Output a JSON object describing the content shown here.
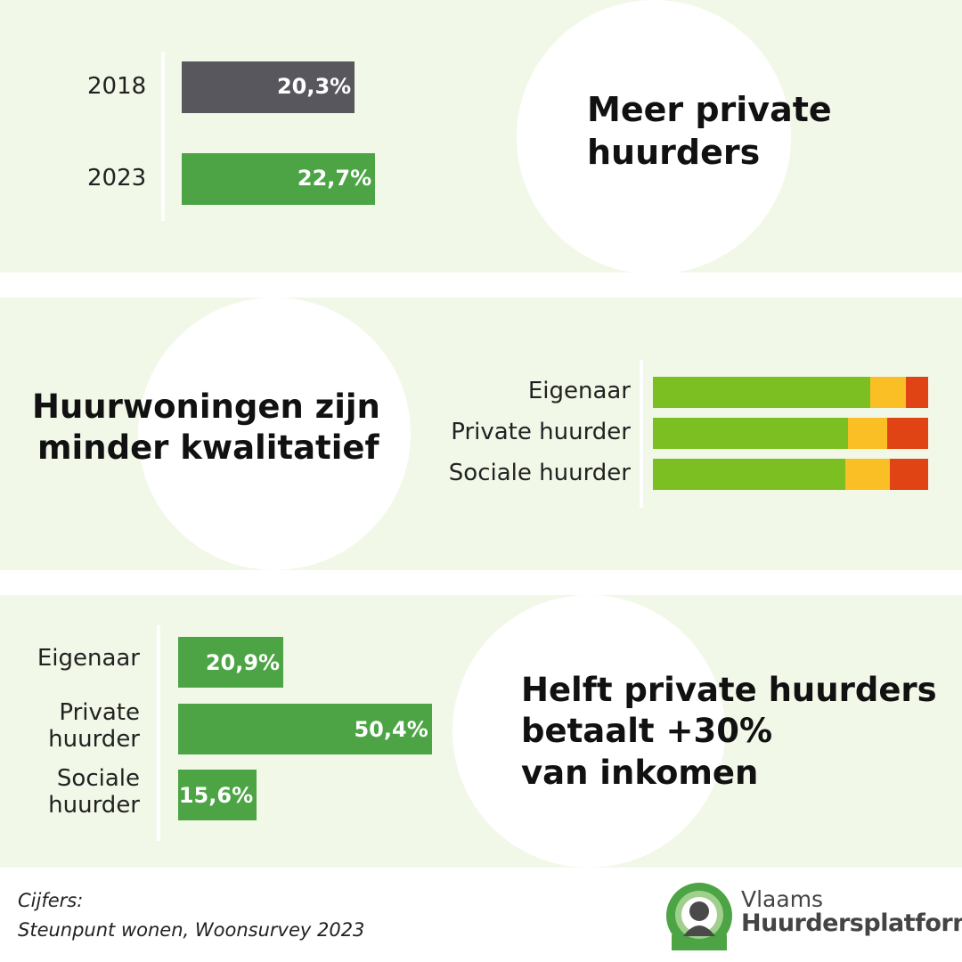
{
  "colors": {
    "panel_bg": "#f1f8e8",
    "gray_bar": "#58575d",
    "green_bar": "#4ca445",
    "good": "#7cbf23",
    "medium": "#fbbf26",
    "bad": "#e14414"
  },
  "chart_data": [
    {
      "type": "bar",
      "orientation": "horizontal",
      "title": "Meer private huurders",
      "categories": [
        "2018",
        "2023"
      ],
      "values": [
        20.3,
        22.7
      ],
      "value_labels": [
        "20,3%",
        "22,7%"
      ],
      "colors": [
        "#58575d",
        "#4ca445"
      ],
      "xlim": [
        0,
        60
      ]
    },
    {
      "type": "bar",
      "orientation": "horizontal",
      "stacked": true,
      "title": "Huurwoningen zijn minder kwalitatief",
      "categories": [
        "Eigenaar",
        "Private huurder",
        "Sociale huurder"
      ],
      "series": [
        {
          "values": [
            79,
            71,
            70
          ],
          "color": "#7cbf23"
        },
        {
          "values": [
            13,
            14,
            16
          ],
          "color": "#fbbf26"
        },
        {
          "values": [
            8,
            15,
            14
          ],
          "color": "#e14414"
        }
      ],
      "xlim": [
        0,
        100
      ]
    },
    {
      "type": "bar",
      "orientation": "horizontal",
      "title": "Helft private huurders betaalt +30% van inkomen",
      "categories": [
        "Eigenaar",
        "Private huurder",
        "Sociale huurder"
      ],
      "category_lines": [
        [
          "Eigenaar"
        ],
        [
          "Private",
          "huurder"
        ],
        [
          "Sociale",
          "huurder"
        ]
      ],
      "values": [
        20.9,
        50.4,
        15.6
      ],
      "value_labels": [
        "20,9%",
        "50,4%",
        "15,6%"
      ],
      "color": "#4ca445",
      "xlim": [
        0,
        60
      ]
    }
  ],
  "headlines": {
    "h1": [
      "Meer private",
      "huurders"
    ],
    "h2": [
      "Huurwoningen zijn",
      "minder kwalitatief"
    ],
    "h3": [
      "Helft private huurders",
      "betaalt +30%",
      "van inkomen"
    ]
  },
  "footer": {
    "line1": "Cijfers:",
    "line2": "Steunpunt wonen, Woonsurvey 2023"
  },
  "logo": {
    "icon": "tenant-logo-icon",
    "line1": "Vlaams",
    "line2": "Huurdersplatform"
  }
}
